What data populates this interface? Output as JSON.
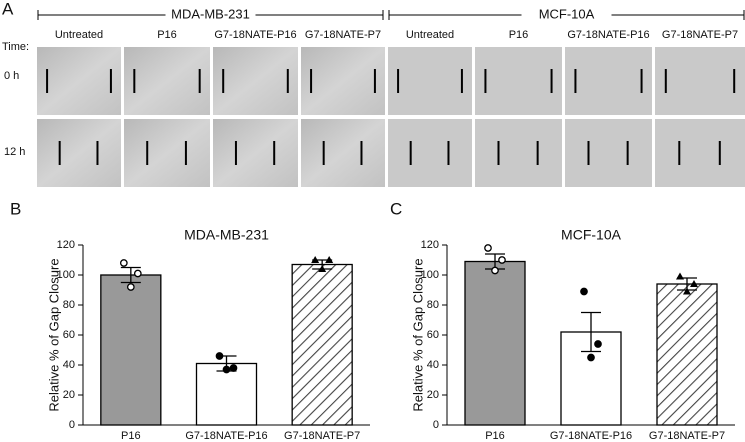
{
  "panel_a": {
    "label": "A",
    "time_label": "Time:",
    "times": [
      "0 h",
      "12 h"
    ],
    "groups": [
      {
        "name": "MDA-MB-231",
        "conditions": [
          "Untreated",
          "P16",
          "G7-18NATE-P16",
          "G7-18NATE-P7"
        ]
      },
      {
        "name": "MCF-10A",
        "conditions": [
          "Untreated",
          "P16",
          "G7-18NATE-P16",
          "G7-18NATE-P7"
        ]
      }
    ]
  },
  "chart_data": [
    {
      "type": "bar",
      "panel_label": "B",
      "title": "MDA-MB-231",
      "y_label": "Relative % of Gap Closure",
      "categories": [
        "P16",
        "G7-18NATE-P16",
        "G7-18NATE-P7"
      ],
      "values": [
        100,
        41,
        107
      ],
      "errors": [
        5,
        5,
        3
      ],
      "points": [
        [
          108,
          101,
          92
        ],
        [
          46,
          38,
          37
        ],
        [
          110,
          110,
          104
        ]
      ],
      "colors": [
        "#999999",
        "#ffffff",
        "#ffffff"
      ],
      "fills": [
        "solid",
        "solid",
        "hatch"
      ],
      "markers": [
        "open-circle",
        "filled-circle",
        "triangle"
      ],
      "ylim": [
        0,
        120
      ],
      "yticks": [
        0,
        20,
        40,
        60,
        80,
        100,
        120
      ]
    },
    {
      "type": "bar",
      "panel_label": "C",
      "title": "MCF-10A",
      "y_label": "Relative % of Gap Closure",
      "categories": [
        "P16",
        "G7-18NATE-P16",
        "G7-18NATE-P7"
      ],
      "values": [
        109,
        62,
        94
      ],
      "errors": [
        5,
        13,
        4
      ],
      "points": [
        [
          118,
          110,
          103
        ],
        [
          89,
          54,
          45
        ],
        [
          99,
          94,
          89
        ]
      ],
      "colors": [
        "#999999",
        "#ffffff",
        "#ffffff"
      ],
      "fills": [
        "solid",
        "solid",
        "hatch"
      ],
      "markers": [
        "open-circle",
        "filled-circle",
        "triangle"
      ],
      "ylim": [
        0,
        120
      ],
      "yticks": [
        0,
        20,
        40,
        60,
        80,
        100,
        120
      ]
    }
  ]
}
